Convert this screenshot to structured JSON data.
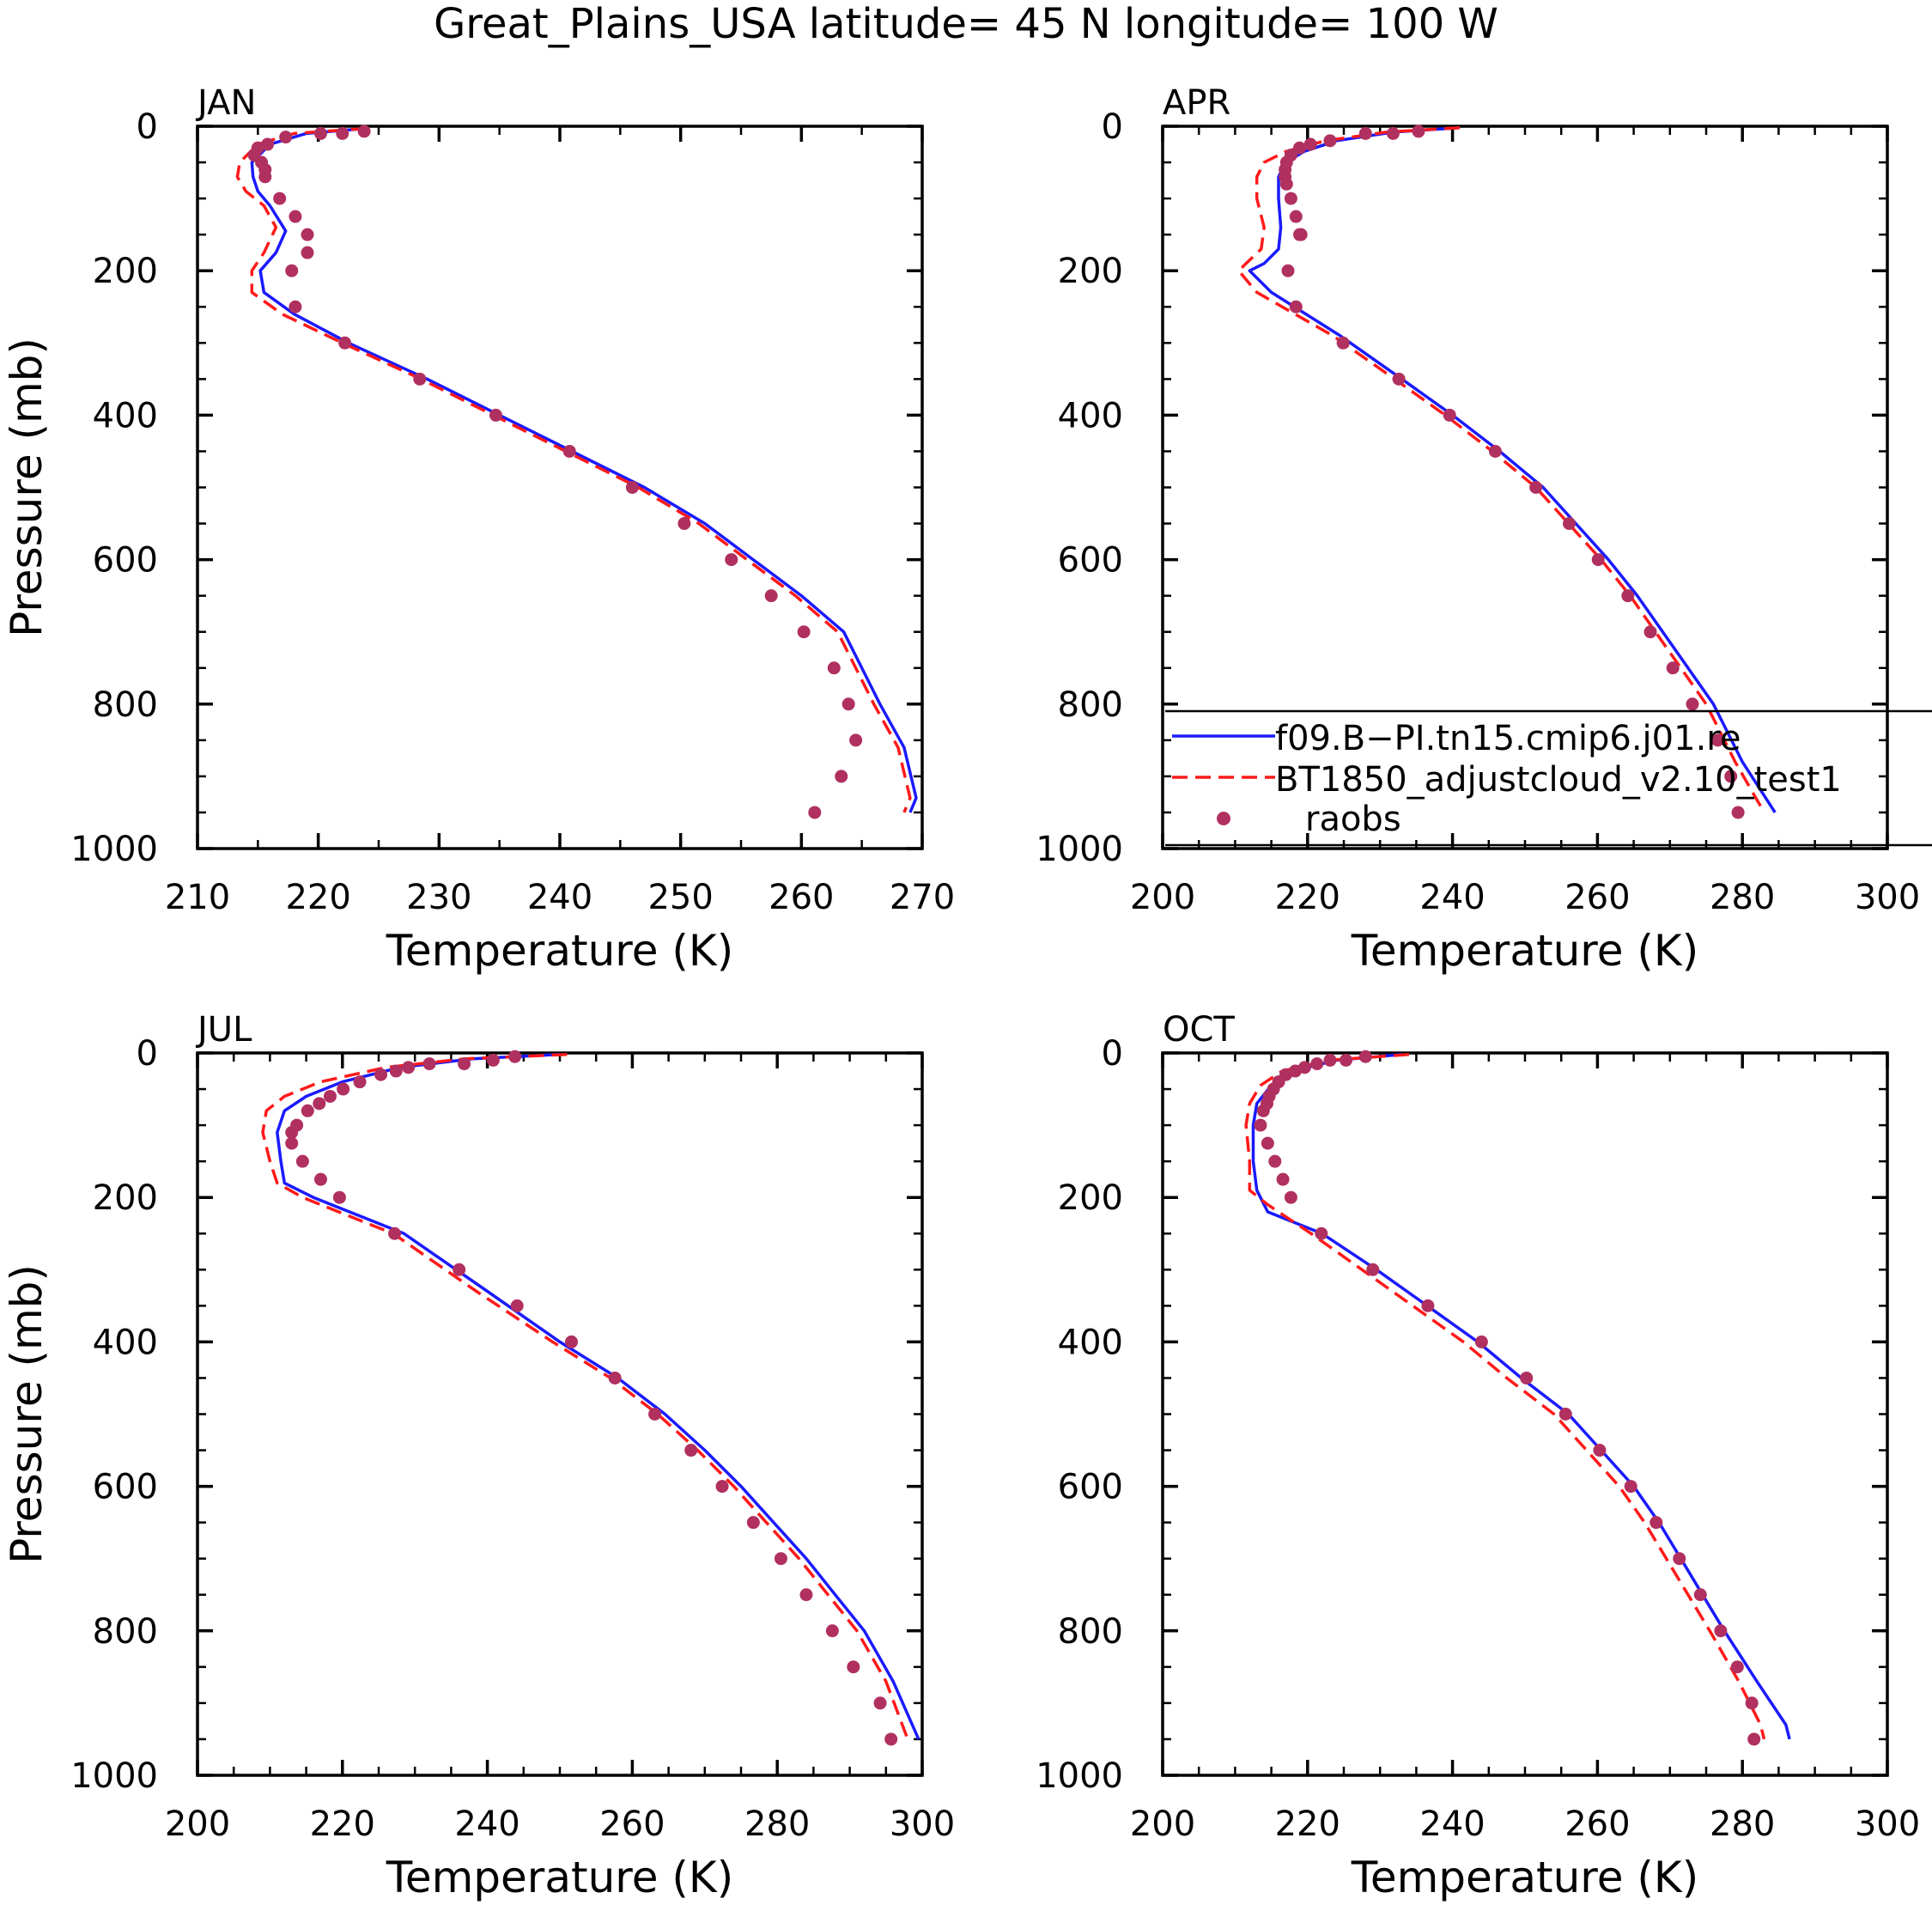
{
  "title": "Great_Plains_USA  latitude= 45 N longitude= 100 W",
  "colors": {
    "model1": "#1a1aff",
    "model2": "#ff1a1a",
    "obs": "#b03060"
  },
  "legend": {
    "entries": [
      "f09.B−PI.tn15.cmip6.j01.re",
      "BT1850_adjustcloud_v2.10_test1",
      "raobs"
    ]
  },
  "chart_data": [
    {
      "type": "line",
      "panel": "JAN",
      "xlabel": "Temperature (K)",
      "ylabel": "Pressure (mb)",
      "xlim": [
        210,
        270
      ],
      "ylim": [
        0,
        1000
      ],
      "y_inverted": true,
      "xticks": [
        "210",
        "220",
        "230",
        "240",
        "250",
        "260",
        "270"
      ],
      "yticks": [
        "0",
        "200",
        "400",
        "600",
        "800",
        "1000"
      ],
      "series": [
        {
          "name": "f09.B−PI.tn15.cmip6.j01.re",
          "style": "solid",
          "t": [
            224,
            219,
            216,
            214.5,
            214.6,
            215,
            216,
            217.3,
            216.5,
            215.2,
            215.5,
            218,
            222.5,
            229,
            235,
            241,
            247,
            252,
            256,
            260,
            263.5,
            266.5,
            268.5,
            269.5,
            269
          ],
          "p": [
            3,
            10,
            25,
            50,
            70,
            90,
            110,
            145,
            175,
            200,
            230,
            260,
            300,
            350,
            400,
            450,
            500,
            550,
            600,
            650,
            700,
            800,
            860,
            930,
            950
          ]
        },
        {
          "name": "BT1850_adjustcloud_v2.10_test1",
          "style": "dashed",
          "t": [
            224,
            218,
            215,
            213.5,
            213.3,
            214,
            215.5,
            216.5,
            215.5,
            214.5,
            214.5,
            217,
            222,
            228.5,
            234.5,
            240.5,
            246.5,
            251.5,
            255.5,
            259.5,
            263,
            266,
            268,
            269,
            268.5
          ],
          "p": [
            3,
            10,
            25,
            50,
            70,
            90,
            110,
            140,
            175,
            200,
            230,
            260,
            300,
            350,
            400,
            450,
            500,
            550,
            600,
            650,
            700,
            800,
            860,
            930,
            950
          ]
        },
        {
          "name": "raobs",
          "style": "markers",
          "t": [
            223.8,
            222,
            220.2,
            217.3,
            215.8,
            215,
            214.7,
            215.3,
            215.6,
            215.6,
            216.8,
            218.1,
            219.1,
            219.1,
            217.8,
            218.1,
            222.2,
            228.4,
            234.7,
            240.8,
            246,
            250.3,
            254.2,
            257.5,
            260.2,
            262.7,
            263.9,
            264.5,
            263.3,
            261.1
          ],
          "p": [
            7,
            10,
            10,
            15,
            25,
            30,
            40,
            50,
            60,
            70,
            100,
            125,
            150,
            175,
            200,
            250,
            300,
            350,
            400,
            450,
            500,
            550,
            600,
            650,
            700,
            750,
            800,
            850,
            900,
            950
          ]
        }
      ]
    },
    {
      "type": "line",
      "panel": "APR",
      "xlabel": "Temperature (K)",
      "ylabel": "",
      "xlim": [
        200,
        300
      ],
      "ylim": [
        0,
        1000
      ],
      "y_inverted": true,
      "xticks": [
        "200",
        "220",
        "240",
        "260",
        "280",
        "300"
      ],
      "yticks": [
        "0",
        "200",
        "400",
        "600",
        "800",
        "1000"
      ],
      "series": [
        {
          "name": "f09.B−PI.tn15.cmip6.j01.re",
          "style": "solid",
          "t": [
            241,
            232,
            224,
            219.5,
            217,
            216,
            216,
            216.3,
            216,
            214,
            212,
            215,
            224.5,
            233,
            240,
            246.5,
            252.5,
            257,
            261.5,
            265.5,
            269,
            272.5,
            276,
            280,
            284.5
          ],
          "p": [
            2,
            8,
            20,
            35,
            50,
            70,
            100,
            140,
            170,
            190,
            200,
            230,
            290,
            350,
            400,
            450,
            500,
            550,
            600,
            650,
            700,
            750,
            800,
            880,
            950
          ]
        },
        {
          "name": "BT1850_adjustcloud_v2.10_test1",
          "style": "dashed",
          "t": [
            241,
            231,
            222.5,
            217,
            214,
            213,
            213,
            214,
            213.6,
            211.5,
            210.5,
            213,
            223.5,
            232,
            239,
            245.5,
            251.5,
            256,
            260.5,
            264.5,
            268,
            271.5,
            275,
            279,
            283
          ],
          "p": [
            2,
            8,
            20,
            35,
            50,
            70,
            100,
            140,
            170,
            190,
            200,
            230,
            290,
            350,
            400,
            450,
            500,
            550,
            600,
            650,
            700,
            750,
            800,
            880,
            950
          ]
        },
        {
          "name": "raobs",
          "style": "markers",
          "t": [
            235.3,
            231.8,
            228,
            223.1,
            220.4,
            218.9,
            217.7,
            217.1,
            216.9,
            216.9,
            217.1,
            217.7,
            218.4,
            218.9,
            219.1,
            217.3,
            218.4,
            224.9,
            232.6,
            239.6,
            245.9,
            251.5,
            256.1,
            260.1,
            264.2,
            267.3,
            270.4,
            273.1,
            276.6,
            278.4,
            279.4
          ],
          "p": [
            7,
            10,
            10,
            20,
            25,
            30,
            40,
            50,
            60,
            70,
            80,
            100,
            125,
            150,
            150,
            200,
            250,
            300,
            350,
            400,
            450,
            500,
            550,
            600,
            650,
            700,
            750,
            800,
            850,
            900,
            950
          ]
        }
      ]
    },
    {
      "type": "line",
      "panel": "JUL",
      "xlabel": "Temperature (K)",
      "ylabel": "Pressure (mb)",
      "xlim": [
        200,
        300
      ],
      "ylim": [
        0,
        1000
      ],
      "y_inverted": true,
      "xticks": [
        "200",
        "220",
        "240",
        "260",
        "280",
        "300"
      ],
      "yticks": [
        "0",
        "200",
        "400",
        "600",
        "800",
        "1000"
      ],
      "series": [
        {
          "name": "f09.B−PI.tn15.cmip6.j01.re",
          "style": "solid",
          "t": [
            250,
            238,
            228,
            220,
            215,
            212,
            211,
            211.5,
            212,
            216,
            228.5,
            240,
            250,
            258,
            264.5,
            270,
            275,
            279.5,
            284,
            288,
            292,
            296,
            299.5
          ],
          "p": [
            2,
            8,
            20,
            40,
            60,
            80,
            110,
            150,
            180,
            200,
            250,
            330,
            400,
            450,
            500,
            550,
            600,
            650,
            700,
            750,
            800,
            870,
            950
          ]
        },
        {
          "name": "BT1850_adjustcloud_v2.10_test1",
          "style": "dashed",
          "t": [
            251,
            237,
            226,
            217,
            212,
            209.5,
            209,
            210,
            211,
            214.5,
            227,
            238.5,
            249,
            257,
            263.5,
            269,
            274,
            278.5,
            283,
            287,
            291,
            295,
            298
          ],
          "p": [
            2,
            8,
            20,
            40,
            60,
            80,
            110,
            150,
            180,
            200,
            250,
            330,
            400,
            450,
            500,
            550,
            600,
            650,
            700,
            750,
            800,
            870,
            950
          ]
        },
        {
          "name": "raobs",
          "style": "markers",
          "t": [
            243.8,
            240.8,
            236.8,
            232,
            229.1,
            227.4,
            225.3,
            222.4,
            220.1,
            218.3,
            216.8,
            215.2,
            213.7,
            213,
            213,
            214.5,
            217,
            219.6,
            227.2,
            236.1,
            244.1,
            251.6,
            257.6,
            263.1,
            268.1,
            272.4,
            276.7,
            280.5,
            284,
            287.6,
            290.5,
            294.2,
            295.7
          ],
          "p": [
            5,
            10,
            15,
            15,
            20,
            25,
            30,
            40,
            50,
            60,
            70,
            80,
            100,
            110,
            125,
            150,
            175,
            200,
            250,
            300,
            350,
            400,
            450,
            500,
            550,
            600,
            650,
            700,
            750,
            800,
            850,
            900,
            950
          ]
        }
      ]
    },
    {
      "type": "line",
      "panel": "OCT",
      "xlabel": "Temperature (K)",
      "ylabel": "",
      "xlim": [
        200,
        300
      ],
      "ylim": [
        0,
        1000
      ],
      "y_inverted": true,
      "xticks": [
        "200",
        "220",
        "240",
        "260",
        "280",
        "300"
      ],
      "yticks": [
        "0",
        "200",
        "400",
        "600",
        "800",
        "1000"
      ],
      "series": [
        {
          "name": "f09.B−PI.tn15.cmip6.j01.re",
          "style": "solid",
          "t": [
            233,
            224,
            218,
            215,
            213,
            212.5,
            212.5,
            213,
            214.5,
            222,
            229.5,
            236.5,
            243.5,
            249.5,
            256,
            260.5,
            265,
            268.5,
            271.5,
            274.5,
            277.5,
            282,
            286,
            286.5
          ],
          "p": [
            2,
            10,
            25,
            45,
            70,
            100,
            150,
            190,
            220,
            250,
            300,
            350,
            400,
            450,
            500,
            550,
            600,
            650,
            700,
            750,
            800,
            870,
            930,
            950
          ]
        },
        {
          "name": "BT1850_adjustcloud_v2.10_test1",
          "style": "dashed",
          "t": [
            234,
            223,
            216.5,
            213.5,
            212,
            211.5,
            212,
            212,
            214.5,
            220.5,
            227.5,
            234.5,
            241.5,
            247.5,
            254,
            258.5,
            263,
            266.5,
            269.5,
            272.5,
            275.5,
            279.5,
            282.5,
            283
          ],
          "p": [
            2,
            10,
            25,
            45,
            70,
            100,
            150,
            190,
            210,
            250,
            300,
            350,
            400,
            450,
            500,
            550,
            600,
            650,
            700,
            750,
            800,
            870,
            930,
            950
          ]
        },
        {
          "name": "raobs",
          "style": "markers",
          "t": [
            228,
            225.3,
            223.1,
            221.3,
            219.6,
            218.3,
            217,
            216,
            215.3,
            214.7,
            214.4,
            213.9,
            213.5,
            214.5,
            215.5,
            216.6,
            217.7,
            221.9,
            229,
            236.6,
            244,
            250.2,
            255.6,
            260.3,
            264.6,
            268.1,
            271.3,
            274.2,
            277,
            279.3,
            281.3,
            281.6
          ],
          "p": [
            5,
            10,
            10,
            15,
            20,
            25,
            30,
            40,
            50,
            60,
            70,
            80,
            100,
            125,
            150,
            175,
            200,
            250,
            300,
            350,
            400,
            450,
            500,
            550,
            600,
            650,
            700,
            750,
            800,
            850,
            900,
            950
          ]
        }
      ]
    }
  ]
}
